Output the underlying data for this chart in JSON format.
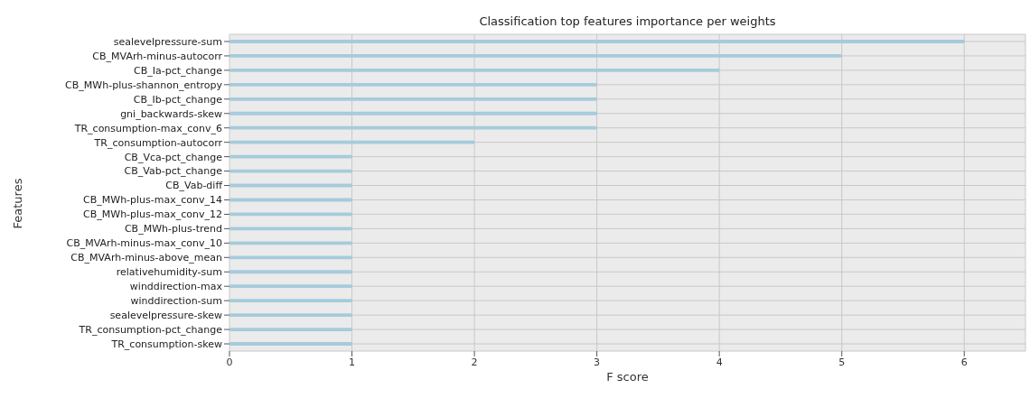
{
  "chart_data": {
    "type": "bar",
    "orientation": "horizontal",
    "title": "Classification top features importance per weights",
    "xlabel": "F score",
    "ylabel": "Features",
    "categories": [
      "sealevelpressure-sum",
      "CB_MVArh-minus-autocorr",
      "CB_Ia-pct_change",
      "CB_MWh-plus-shannon_entropy",
      "CB_Ib-pct_change",
      "gni_backwards-skew",
      "TR_consumption-max_conv_6",
      "TR_consumption-autocorr",
      "CB_Vca-pct_change",
      "CB_Vab-pct_change",
      "CB_Vab-diff",
      "CB_MWh-plus-max_conv_14",
      "CB_MWh-plus-max_conv_12",
      "CB_MWh-plus-trend",
      "CB_MVArh-minus-max_conv_10",
      "CB_MVArh-minus-above_mean",
      "relativehumidity-sum",
      "winddirection-max",
      "winddirection-sum",
      "sealevelpressure-skew",
      "TR_consumption-pct_change",
      "TR_consumption-skew"
    ],
    "values": [
      6,
      5,
      4,
      3,
      3,
      3,
      3,
      2,
      1,
      1,
      1,
      1,
      1,
      1,
      1,
      1,
      1,
      1,
      1,
      1,
      1,
      1
    ],
    "color": "#a6cbdc",
    "xlim": [
      0,
      6.5
    ],
    "xticks": [
      0,
      1,
      2,
      3,
      4,
      5,
      6
    ],
    "grid": true
  }
}
